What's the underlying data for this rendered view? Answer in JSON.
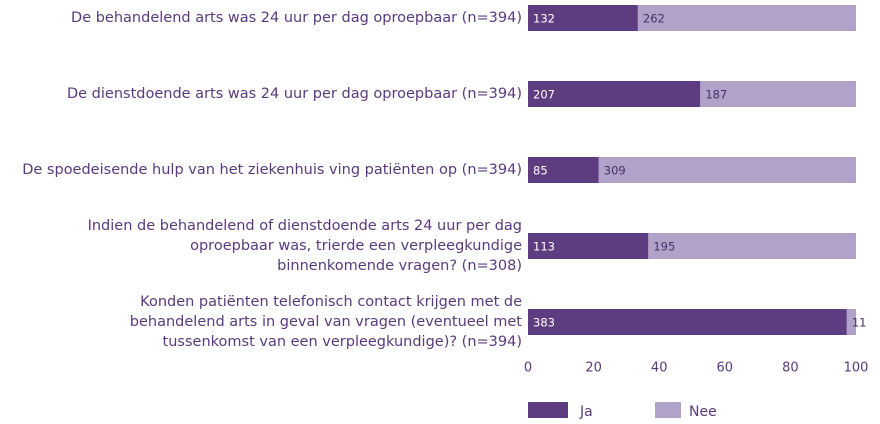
{
  "chart_data": {
    "type": "bar",
    "orientation": "horizontal",
    "stacking": "percent",
    "categories": [
      "De behandelend arts was 24 uur per dag oproepbaar (n=394)",
      "De dienstdoende arts was 24 uur per dag oproepbaar (n=394)",
      "De spoedeisende hulp van het ziekenhuis ving patiënten op (n=394)",
      "Indien de behandelend of dienstdoende arts 24 uur per dag oproepbaar was, trierde een verpleegkundige binnenkomende vragen? (n=308)",
      "Konden patiënten telefonisch contact krijgen met de behandelend arts in geval van vragen (eventueel met tussenkomst van een verpleegkundige)? (n=394)"
    ],
    "series": [
      {
        "name": "Ja",
        "color": "#5e3c80",
        "values": [
          132,
          207,
          85,
          113,
          383
        ]
      },
      {
        "name": "Nee",
        "color": "#b1a2c9",
        "values": [
          262,
          187,
          309,
          195,
          11
        ]
      }
    ],
    "xlim": [
      0,
      100
    ],
    "xticks": [
      0,
      20,
      40,
      60,
      80,
      100
    ],
    "legend": "bottom"
  }
}
